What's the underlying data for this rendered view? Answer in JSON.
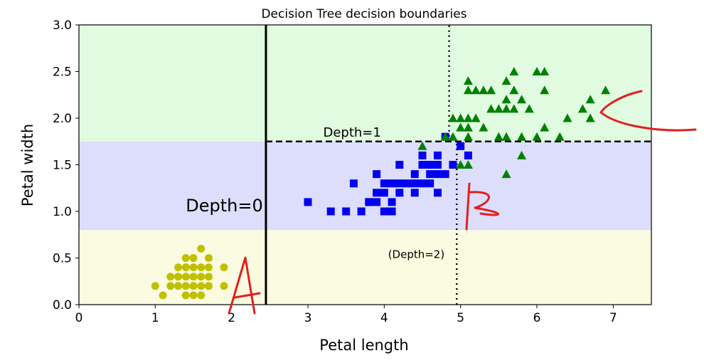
{
  "chart_data": {
    "type": "scatter",
    "title": "Decision Tree decision boundaries",
    "xlabel": "Petal length",
    "ylabel": "Petal width",
    "xlim": [
      0,
      7.5
    ],
    "ylim": [
      0,
      3.0
    ],
    "xticks": [
      "0",
      "1",
      "2",
      "3",
      "4",
      "5",
      "6",
      "7"
    ],
    "yticks": [
      "0.0",
      "0.5",
      "1.0",
      "1.5",
      "2.0",
      "2.5",
      "3.0"
    ],
    "grid": false,
    "legend": "none",
    "regions": [
      {
        "x": [
          0,
          7.5
        ],
        "y": [
          0,
          0.8
        ],
        "color": "#fbfbe1"
      },
      {
        "x": [
          0,
          7.5
        ],
        "y": [
          0.8,
          1.75
        ],
        "color": "#ddddfc"
      },
      {
        "x": [
          0,
          7.5
        ],
        "y": [
          1.75,
          3.0
        ],
        "color": "#e0fbe0"
      }
    ],
    "boundaries": [
      {
        "label": "Depth=0",
        "orientation": "vertical",
        "x": 2.45,
        "y": [
          0,
          3.0
        ],
        "style": "solid"
      },
      {
        "label": "Depth=1",
        "orientation": "horizontal",
        "y": 1.75,
        "x": [
          2.45,
          7.5
        ],
        "style": "dashed"
      },
      {
        "label": "(Depth=2)",
        "orientation": "vertical",
        "x": 4.95,
        "y": [
          0,
          1.75
        ],
        "style": "dotted"
      },
      {
        "label": "",
        "orientation": "vertical",
        "x": 4.85,
        "y": [
          1.75,
          3.0
        ],
        "style": "dotted"
      }
    ],
    "annotations": [
      {
        "text": "Depth=0",
        "x": 1.4,
        "y": 1.0
      },
      {
        "text": "Depth=1",
        "x": 3.2,
        "y": 1.8
      },
      {
        "text": "(Depth=2)",
        "x": 4.05,
        "y": 0.5
      }
    ],
    "series": [
      {
        "marker": "circle",
        "color": "#c0c000",
        "points": [
          [
            1.0,
            0.2
          ],
          [
            1.1,
            0.1
          ],
          [
            1.2,
            0.2
          ],
          [
            1.3,
            0.2
          ],
          [
            1.3,
            0.3
          ],
          [
            1.3,
            0.4
          ],
          [
            1.4,
            0.2
          ],
          [
            1.4,
            0.3
          ],
          [
            1.4,
            0.1
          ],
          [
            1.4,
            0.5
          ],
          [
            1.5,
            0.2
          ],
          [
            1.5,
            0.1
          ],
          [
            1.5,
            0.4
          ],
          [
            1.5,
            0.3
          ],
          [
            1.6,
            0.2
          ],
          [
            1.6,
            0.4
          ],
          [
            1.6,
            0.6
          ],
          [
            1.6,
            0.3
          ],
          [
            1.7,
            0.2
          ],
          [
            1.7,
            0.4
          ],
          [
            1.7,
            0.5
          ],
          [
            1.7,
            0.3
          ],
          [
            1.9,
            0.2
          ],
          [
            1.9,
            0.4
          ],
          [
            1.2,
            0.3
          ],
          [
            1.4,
            0.4
          ],
          [
            1.5,
            0.5
          ],
          [
            1.6,
            0.1
          ]
        ]
      },
      {
        "marker": "square",
        "color": "#0000ee",
        "points": [
          [
            3.0,
            1.1
          ],
          [
            3.3,
            1.0
          ],
          [
            3.5,
            1.0
          ],
          [
            3.6,
            1.3
          ],
          [
            3.7,
            1.0
          ],
          [
            3.8,
            1.1
          ],
          [
            3.9,
            1.1
          ],
          [
            3.9,
            1.2
          ],
          [
            3.9,
            1.4
          ],
          [
            4.0,
            1.0
          ],
          [
            4.0,
            1.2
          ],
          [
            4.0,
            1.3
          ],
          [
            4.1,
            1.0
          ],
          [
            4.1,
            1.3
          ],
          [
            4.2,
            1.2
          ],
          [
            4.2,
            1.3
          ],
          [
            4.2,
            1.5
          ],
          [
            4.3,
            1.3
          ],
          [
            4.4,
            1.2
          ],
          [
            4.4,
            1.3
          ],
          [
            4.4,
            1.4
          ],
          [
            4.5,
            1.3
          ],
          [
            4.5,
            1.5
          ],
          [
            4.5,
            1.6
          ],
          [
            4.6,
            1.3
          ],
          [
            4.6,
            1.4
          ],
          [
            4.6,
            1.5
          ],
          [
            4.7,
            1.2
          ],
          [
            4.7,
            1.4
          ],
          [
            4.7,
            1.5
          ],
          [
            4.7,
            1.6
          ],
          [
            4.8,
            1.4
          ],
          [
            4.8,
            1.8
          ],
          [
            4.9,
            1.5
          ],
          [
            5.0,
            1.7
          ],
          [
            5.1,
            1.6
          ],
          [
            4.1,
            1.1
          ],
          [
            3.8,
            1.1
          ]
        ]
      },
      {
        "marker": "triangle",
        "color": "#008000",
        "points": [
          [
            4.5,
            1.7
          ],
          [
            4.8,
            1.8
          ],
          [
            4.9,
            1.8
          ],
          [
            4.9,
            2.0
          ],
          [
            5.0,
            1.5
          ],
          [
            5.0,
            2.0
          ],
          [
            5.0,
            1.9
          ],
          [
            5.1,
            1.5
          ],
          [
            5.1,
            1.8
          ],
          [
            5.1,
            1.9
          ],
          [
            5.1,
            2.0
          ],
          [
            5.1,
            2.3
          ],
          [
            5.1,
            2.4
          ],
          [
            5.2,
            2.0
          ],
          [
            5.2,
            2.3
          ],
          [
            5.3,
            1.9
          ],
          [
            5.3,
            2.3
          ],
          [
            5.4,
            2.1
          ],
          [
            5.4,
            2.3
          ],
          [
            5.5,
            1.8
          ],
          [
            5.5,
            2.1
          ],
          [
            5.6,
            1.4
          ],
          [
            5.6,
            1.8
          ],
          [
            5.6,
            2.1
          ],
          [
            5.6,
            2.2
          ],
          [
            5.6,
            2.4
          ],
          [
            5.7,
            2.1
          ],
          [
            5.7,
            2.3
          ],
          [
            5.7,
            2.5
          ],
          [
            5.8,
            1.6
          ],
          [
            5.8,
            1.8
          ],
          [
            5.8,
            2.2
          ],
          [
            5.9,
            2.1
          ],
          [
            6.0,
            1.8
          ],
          [
            6.0,
            2.5
          ],
          [
            6.1,
            1.9
          ],
          [
            6.1,
            2.3
          ],
          [
            6.1,
            2.5
          ],
          [
            6.3,
            1.8
          ],
          [
            6.4,
            2.0
          ],
          [
            6.6,
            2.1
          ],
          [
            6.7,
            2.0
          ],
          [
            6.7,
            2.2
          ],
          [
            6.9,
            2.3
          ]
        ]
      }
    ]
  },
  "colors": {
    "ink_red": "#e02020"
  }
}
